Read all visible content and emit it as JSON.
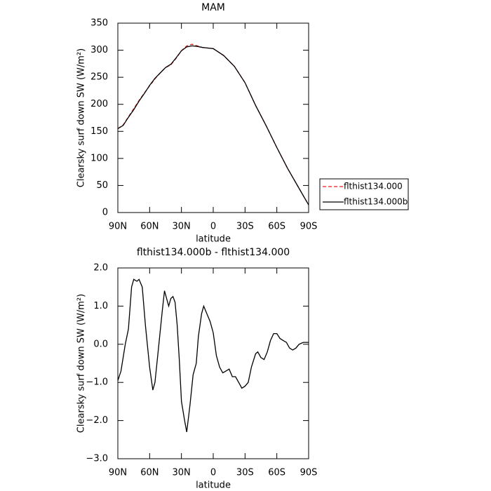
{
  "chart_data": [
    {
      "type": "line",
      "title": "MAM",
      "xlabel": "latitude",
      "ylabel": "Clearsky surf down SW (W/m²)",
      "xlim": [
        90,
        -90
      ],
      "ylim": [
        0,
        350
      ],
      "xticks": [
        {
          "value": 90,
          "label": "90N"
        },
        {
          "value": 60,
          "label": "60N"
        },
        {
          "value": 30,
          "label": "30N"
        },
        0,
        {
          "value": -30,
          "label": "30S"
        },
        {
          "value": -60,
          "label": "60S"
        },
        {
          "value": -90,
          "label": "90S"
        }
      ],
      "yticks": [
        0,
        50,
        100,
        150,
        200,
        250,
        300,
        350
      ],
      "x": [
        90,
        85,
        80,
        75,
        70,
        65,
        60,
        55,
        50,
        45,
        40,
        35,
        30,
        25,
        20,
        15,
        10,
        5,
        0,
        -10,
        -20,
        -30,
        -40,
        -50,
        -60,
        -70,
        -80,
        -90
      ],
      "legend": "right",
      "series": [
        {
          "name": "flthist134.000",
          "color": "#e02020",
          "dash": true,
          "values": [
            155,
            162,
            177,
            192,
            207,
            221,
            234,
            247,
            258,
            268,
            273,
            285,
            299,
            308,
            311,
            308,
            305,
            304,
            303,
            290,
            270,
            240,
            198,
            160,
            120,
            82,
            48,
            14
          ]
        },
        {
          "name": "flthist134.000b",
          "color": "#000000",
          "dash": false,
          "values": [
            155,
            161,
            176,
            190,
            206,
            220,
            235,
            248,
            258,
            268,
            274,
            286,
            299,
            306,
            308,
            307,
            305,
            304,
            303,
            290,
            270,
            240,
            198,
            160,
            120,
            82,
            48,
            14
          ]
        }
      ]
    },
    {
      "type": "line",
      "title": "flthist134.000b - flthist134.000",
      "xlabel": "latitude",
      "ylabel": "Clearsky surf down SW (W/m²)",
      "xlim": [
        90,
        -90
      ],
      "ylim": [
        -3,
        2
      ],
      "xticks": [
        {
          "value": 90,
          "label": "90N"
        },
        {
          "value": 60,
          "label": "60N"
        },
        {
          "value": 30,
          "label": "30N"
        },
        0,
        {
          "value": -30,
          "label": "30S"
        },
        {
          "value": -60,
          "label": "60S"
        },
        {
          "value": -90,
          "label": "90S"
        }
      ],
      "yticks": [
        {
          "value": -3,
          "label": "−3.0"
        },
        {
          "value": -2,
          "label": "−2.0"
        },
        {
          "value": -1,
          "label": "−1.0"
        },
        {
          "value": 0,
          "label": "0.0"
        },
        {
          "value": 1,
          "label": "1.0"
        },
        {
          "value": 2,
          "label": "2.0"
        }
      ],
      "x": [
        90,
        87,
        83,
        80,
        77,
        75,
        72,
        70,
        67,
        64,
        60,
        57,
        55,
        52,
        48,
        46,
        44,
        42,
        40,
        38,
        36,
        34,
        32,
        30,
        27,
        25,
        22,
        19,
        16,
        14,
        11,
        9,
        6,
        3,
        0,
        -3,
        -6,
        -9,
        -12,
        -15,
        -18,
        -21,
        -24,
        -27,
        -30,
        -33,
        -36,
        -40,
        -42,
        -45,
        -48,
        -51,
        -54,
        -57,
        -60,
        -63,
        -66,
        -69,
        -72,
        -75,
        -78,
        -81,
        -85,
        -90
      ],
      "series": [
        {
          "name": null,
          "color": "#000000",
          "dash": false,
          "values": [
            -0.95,
            -0.7,
            0.0,
            0.4,
            1.5,
            1.7,
            1.65,
            1.7,
            1.5,
            0.5,
            -0.6,
            -1.2,
            -1.0,
            -0.2,
            0.9,
            1.4,
            1.2,
            1.0,
            1.2,
            1.25,
            1.1,
            0.5,
            -0.4,
            -1.5,
            -2.0,
            -2.3,
            -1.6,
            -0.8,
            -0.5,
            0.2,
            0.8,
            1.0,
            0.8,
            0.6,
            0.3,
            -0.3,
            -0.6,
            -0.75,
            -0.7,
            -0.65,
            -0.85,
            -0.85,
            -1.0,
            -1.15,
            -1.1,
            -1.0,
            -0.6,
            -0.25,
            -0.2,
            -0.35,
            -0.4,
            -0.2,
            0.1,
            0.28,
            0.28,
            0.15,
            0.1,
            0.05,
            -0.1,
            -0.15,
            -0.1,
            0.0,
            0.05,
            0.05
          ]
        }
      ]
    }
  ]
}
